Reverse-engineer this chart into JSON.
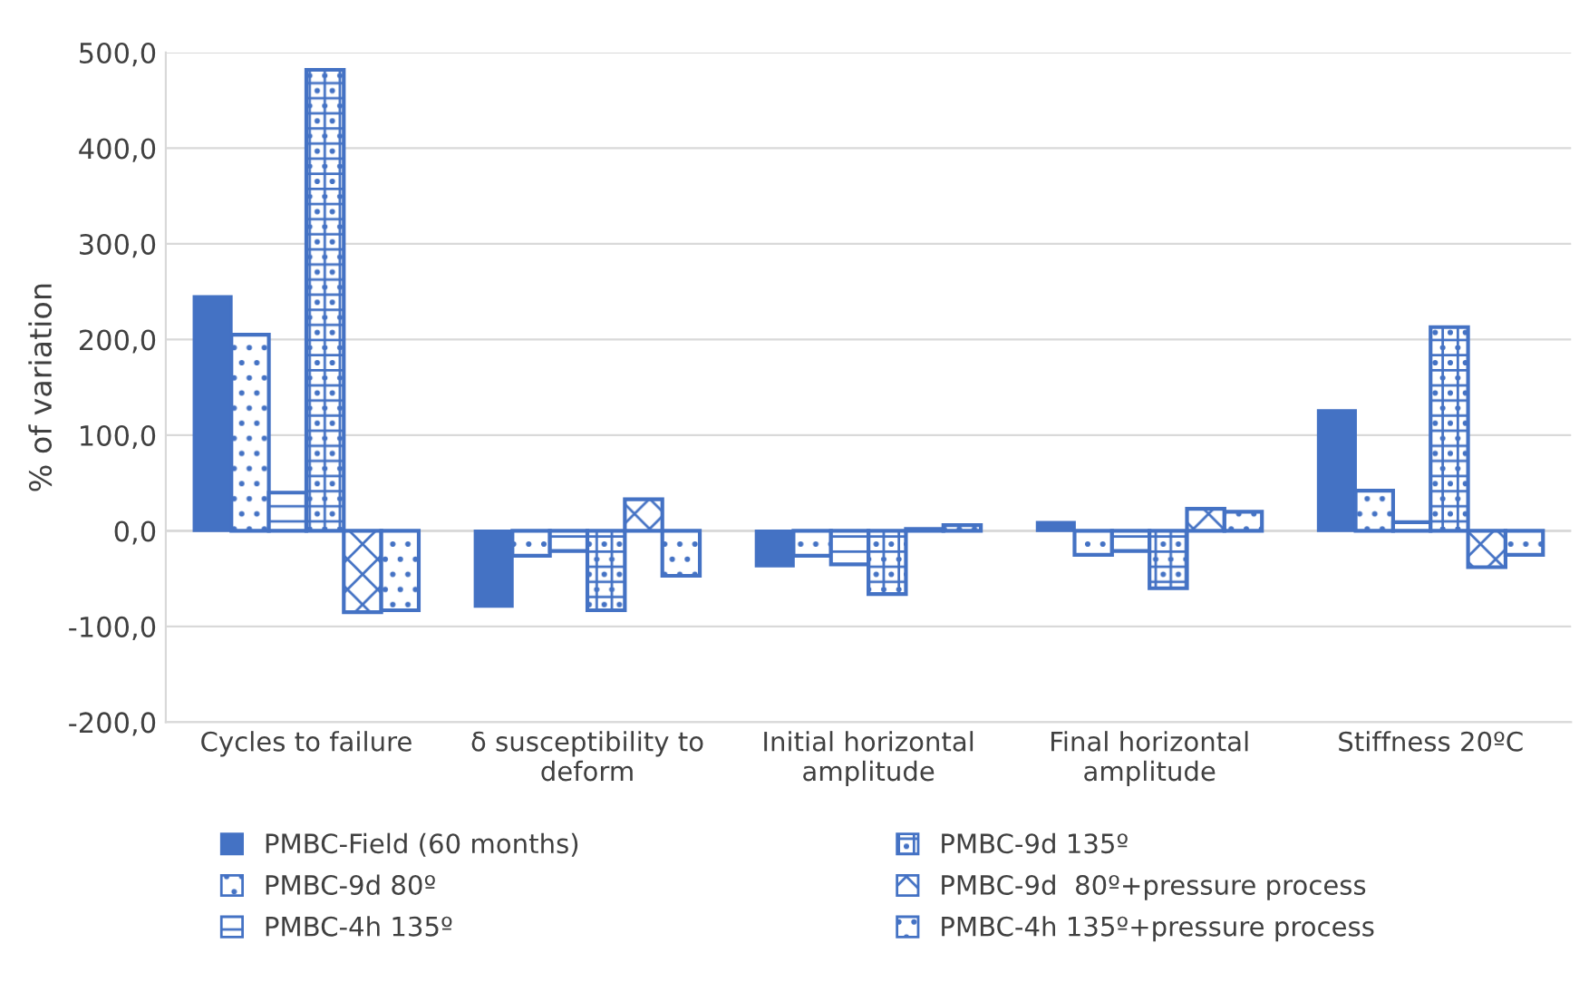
{
  "chart_data": {
    "type": "bar",
    "ylabel": "% of variation",
    "categories": [
      "Cycles to failure",
      "δ susceptibility to\ndeform",
      "Initial horizontal\namplitude",
      "Final horizontal\namplitude",
      "Stiffness 20ºC"
    ],
    "series": [
      {
        "name": "PMBC-Field (60 months)",
        "color": "#4472c4",
        "values": [
          245,
          -79,
          -37,
          9,
          126
        ]
      },
      {
        "name": "PMBC-9d 80º",
        "color": "#4472c4",
        "values": [
          205,
          -26,
          -26,
          -25,
          42
        ]
      },
      {
        "name": "PMBC-4h 135º",
        "color": "#4472c4",
        "values": [
          40,
          -21,
          -35,
          -21,
          9
        ]
      },
      {
        "name": "PMBC-9d 135º",
        "color": "#4472c4",
        "values": [
          482,
          -83,
          -66,
          -60,
          213
        ]
      },
      {
        "name": "PMBC-9d  80º+pressure process",
        "color": "#4472c4",
        "values": [
          -85,
          33,
          2,
          23,
          -38
        ]
      },
      {
        "name": "PMBC-4h 135º+pressure process",
        "color": "#4472c4",
        "values": [
          -83,
          -47,
          6,
          20,
          -25
        ]
      }
    ],
    "ylim": [
      -200,
      500
    ],
    "yticks": [
      {
        "value": -200,
        "label": "-200,0"
      },
      {
        "value": -100,
        "label": "-100,0"
      },
      {
        "value": 0,
        "label": "0,0"
      },
      {
        "value": 100,
        "label": "100,0"
      },
      {
        "value": 200,
        "label": "200,0"
      },
      {
        "value": 300,
        "label": "300,0"
      },
      {
        "value": 400,
        "label": "400,0"
      },
      {
        "value": 500,
        "label": "500,0"
      }
    ],
    "grid": "y",
    "legend": "bottom"
  }
}
